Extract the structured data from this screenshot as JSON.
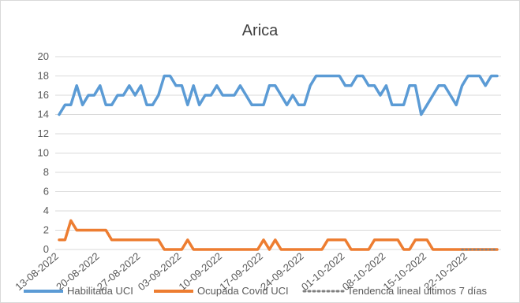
{
  "chart_data": {
    "type": "line",
    "title": "Arica",
    "xlabel": "",
    "ylabel": "",
    "ylim": [
      0,
      20
    ],
    "yticks": [
      0,
      2,
      4,
      6,
      8,
      10,
      12,
      14,
      16,
      18,
      20
    ],
    "grid": "horizontal",
    "legend_position": "bottom",
    "x_tick_labels": [
      "13-08-2022",
      "20-08-2022",
      "27-08-2022",
      "03-09-2022",
      "10-09-2022",
      "17-09-2022",
      "24-09-2022",
      "01-10-2022",
      "08-10-2022",
      "15-10-2022",
      "22-10-2022"
    ],
    "x_tick_indices": [
      0,
      7,
      14,
      21,
      28,
      35,
      42,
      49,
      56,
      63,
      70
    ],
    "series": [
      {
        "name": "Habilitada UCI",
        "color": "#5b9bd5",
        "style": "solid",
        "values": [
          14,
          15,
          15,
          17,
          15,
          16,
          16,
          17,
          15,
          15,
          16,
          16,
          17,
          16,
          17,
          15,
          15,
          16,
          18,
          18,
          17,
          17,
          15,
          17,
          15,
          16,
          16,
          17,
          16,
          16,
          16,
          17,
          16,
          15,
          15,
          15,
          17,
          17,
          16,
          15,
          16,
          15,
          15,
          17,
          18,
          18,
          18,
          18,
          18,
          17,
          17,
          18,
          18,
          17,
          17,
          16,
          17,
          15,
          15,
          15,
          17,
          17,
          14,
          15,
          16,
          17,
          17,
          16,
          15,
          17,
          18,
          18,
          18,
          17,
          18,
          18
        ]
      },
      {
        "name": "Ocupada Covid UCI",
        "color": "#ed7d31",
        "style": "solid",
        "values": [
          1,
          1,
          3,
          2,
          2,
          2,
          2,
          2,
          2,
          1,
          1,
          1,
          1,
          1,
          1,
          1,
          1,
          1,
          0,
          0,
          0,
          0,
          1,
          0,
          0,
          0,
          0,
          0,
          0,
          0,
          0,
          0,
          0,
          0,
          0,
          1,
          0,
          1,
          0,
          0,
          0,
          0,
          0,
          0,
          0,
          0,
          1,
          1,
          1,
          1,
          0,
          0,
          0,
          0,
          1,
          1,
          1,
          1,
          1,
          0,
          0,
          1,
          1,
          1,
          0,
          0,
          0,
          0,
          0,
          0,
          0,
          0,
          0,
          0,
          0,
          0
        ]
      },
      {
        "name": "Tendencia lineal últimos 7 días",
        "color": "#7f7f7f",
        "style": "dotted",
        "start_index": 69,
        "values": [
          0,
          0,
          0,
          0,
          0,
          0,
          0
        ]
      }
    ]
  }
}
